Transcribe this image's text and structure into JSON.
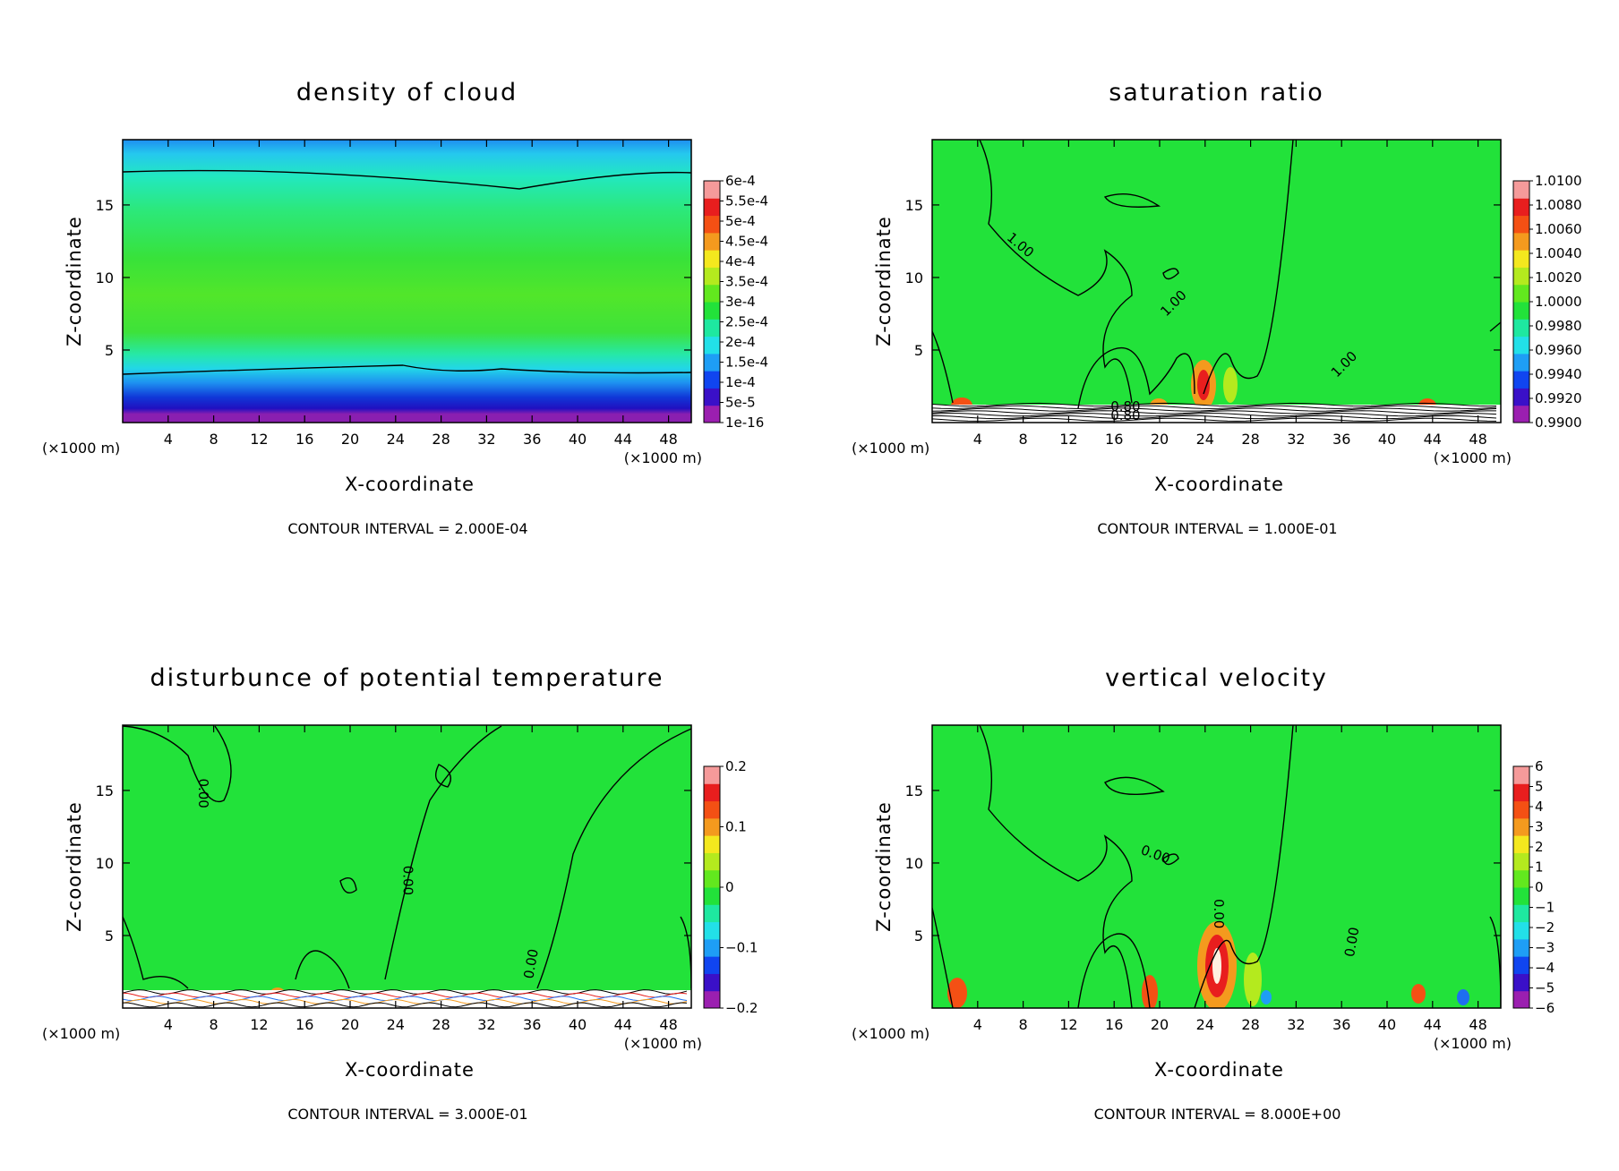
{
  "chart_data": [
    {
      "type": "heatmap",
      "title": "density of cloud",
      "xlabel": "X-coordinate",
      "ylabel": "Z-coordinate",
      "x_unit": "(×1000 m)",
      "y_unit": "(×1000 m)",
      "xlim": [
        0,
        50
      ],
      "ylim": [
        0,
        19.5
      ],
      "x_ticks": [
        4,
        8,
        12,
        16,
        20,
        24,
        28,
        32,
        36,
        40,
        44,
        48
      ],
      "y_ticks": [
        5,
        10,
        15
      ],
      "colorbar": {
        "labels": [
          "6e-4",
          "5.5e-4",
          "5e-4",
          "4.5e-4",
          "4e-4",
          "3.5e-4",
          "3e-4",
          "2.5e-4",
          "2e-4",
          "1.5e-4",
          "1e-4",
          "5e-5",
          "1e-16"
        ],
        "colors": [
          "#9b1fb0",
          "#3a10c8",
          "#1045f0",
          "#1e9ef5",
          "#22e0e8",
          "#1ee8a0",
          "#22e23a",
          "#62e81e",
          "#b4ea1e",
          "#f4e81e",
          "#f49a1e",
          "#f45014",
          "#e81e1e",
          "#f59a9a"
        ]
      },
      "contour_interval": "CONTOUR INTERVAL = 2.000E-04",
      "contour_labels": []
    },
    {
      "type": "heatmap",
      "title": "saturation ratio",
      "xlabel": "X-coordinate",
      "ylabel": "Z-coordinate",
      "x_unit": "(×1000 m)",
      "y_unit": "(×1000 m)",
      "xlim": [
        0,
        50
      ],
      "ylim": [
        0,
        19.5
      ],
      "x_ticks": [
        4,
        8,
        12,
        16,
        20,
        24,
        28,
        32,
        36,
        40,
        44,
        48
      ],
      "y_ticks": [
        5,
        10,
        15
      ],
      "colorbar": {
        "labels": [
          "1.0100",
          "1.0080",
          "1.0060",
          "1.0040",
          "1.0020",
          "1.0000",
          "0.9980",
          "0.9960",
          "0.9940",
          "0.9920",
          "0.9900"
        ],
        "colors": [
          "#9b1fb0",
          "#3a10c8",
          "#1045f0",
          "#1e9ef5",
          "#22e0e8",
          "#1ee8a0",
          "#22e23a",
          "#62e81e",
          "#b4ea1e",
          "#f4e81e",
          "#f49a1e",
          "#f45014",
          "#e81e1e",
          "#f59a9a"
        ]
      },
      "contour_interval": "CONTOUR INTERVAL = 1.000E-01",
      "contour_labels": [
        {
          "text": "1.00",
          "x": 7.5,
          "z": 12.0,
          "rot": 40
        },
        {
          "text": "1.00",
          "x": 21.5,
          "z": 8.0,
          "rot": -45
        },
        {
          "text": "1.00",
          "x": 36.5,
          "z": 3.8,
          "rot": -45
        },
        {
          "text": "0.80",
          "x": 17.0,
          "z": 0.8,
          "rot": 0
        },
        {
          "text": "0.80",
          "x": 17.0,
          "z": 0.2,
          "rot": 0
        }
      ]
    },
    {
      "type": "heatmap",
      "title": "disturbunce of potential temperature",
      "xlabel": "X-coordinate",
      "ylabel": "Z-coordinate",
      "x_unit": "(×1000 m)",
      "y_unit": "(×1000 m)",
      "xlim": [
        0,
        50
      ],
      "ylim": [
        0,
        19.5
      ],
      "x_ticks": [
        4,
        8,
        12,
        16,
        20,
        24,
        28,
        32,
        36,
        40,
        44,
        48
      ],
      "y_ticks": [
        5,
        10,
        15
      ],
      "colorbar": {
        "labels": [
          "0.2",
          "0.1",
          "0",
          "−0.1",
          "−0.2"
        ],
        "colors": [
          "#9b1fb0",
          "#3a10c8",
          "#1045f0",
          "#1e9ef5",
          "#22e0e8",
          "#1ee8a0",
          "#22e23a",
          "#62e81e",
          "#b4ea1e",
          "#f4e81e",
          "#f49a1e",
          "#f45014",
          "#e81e1e",
          "#f59a9a"
        ]
      },
      "contour_interval": "CONTOUR INTERVAL = 3.000E-01",
      "contour_labels": [
        {
          "text": "0.00",
          "x": 6.7,
          "z": 14.8,
          "rot": 90
        },
        {
          "text": "0.00",
          "x": 24.7,
          "z": 8.8,
          "rot": 90
        },
        {
          "text": "0.00",
          "x": 36.3,
          "z": 3.0,
          "rot": -80
        }
      ]
    },
    {
      "type": "heatmap",
      "title": "vertical velocity",
      "xlabel": "X-coordinate",
      "ylabel": "Z-coordinate",
      "x_unit": "(×1000 m)",
      "y_unit": "(×1000 m)",
      "xlim": [
        0,
        50
      ],
      "ylim": [
        0,
        19.5
      ],
      "x_ticks": [
        4,
        8,
        12,
        16,
        20,
        24,
        28,
        32,
        36,
        40,
        44,
        48
      ],
      "y_ticks": [
        5,
        10,
        15
      ],
      "colorbar": {
        "labels": [
          "6",
          "5",
          "4",
          "3",
          "2",
          "1",
          "0",
          "−1",
          "−2",
          "−3",
          "−4",
          "−5",
          "−6"
        ],
        "colors": [
          "#9b1fb0",
          "#3a10c8",
          "#1045f0",
          "#1e9ef5",
          "#22e0e8",
          "#1ee8a0",
          "#22e23a",
          "#62e81e",
          "#b4ea1e",
          "#f4e81e",
          "#f49a1e",
          "#f45014",
          "#e81e1e",
          "#f59a9a"
        ]
      },
      "contour_interval": "CONTOUR INTERVAL = 8.000E+00",
      "contour_labels": [
        {
          "text": "0.00",
          "x": 19.5,
          "z": 10.3,
          "rot": 20
        },
        {
          "text": "0.00",
          "x": 24.8,
          "z": 6.5,
          "rot": 90
        },
        {
          "text": "0.00",
          "x": 37.3,
          "z": 4.5,
          "rot": -80
        }
      ]
    }
  ]
}
